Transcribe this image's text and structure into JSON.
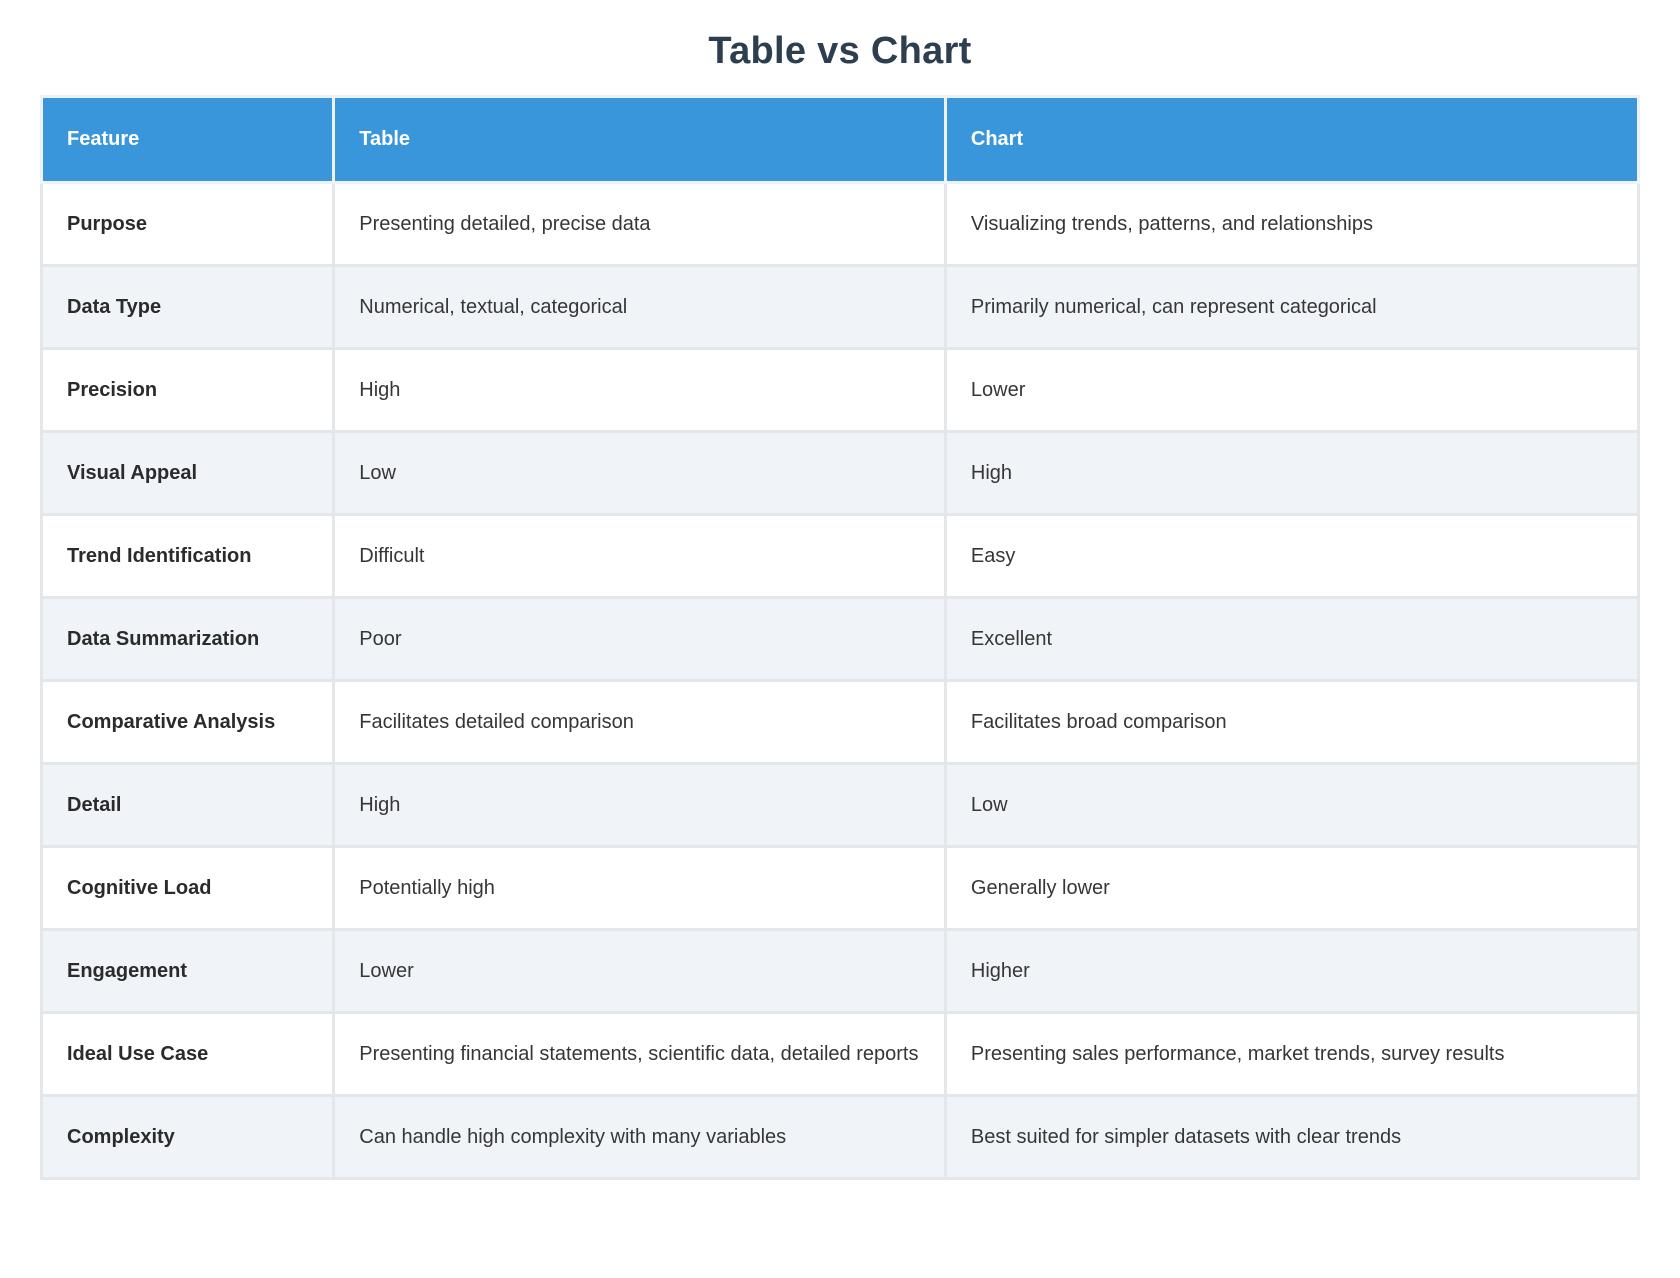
{
  "page": {
    "title": "Table vs Chart"
  },
  "colors": {
    "header_bg": "#3a96db",
    "header_text": "#ffffff",
    "row_bg": "#ffffff",
    "row_alt_bg": "#f0f4f8",
    "border": "#e4e7ea",
    "title_text": "#2c3e50",
    "body_text": "#363636"
  },
  "table": {
    "columns": [
      {
        "label": "Feature"
      },
      {
        "label": "Table"
      },
      {
        "label": "Chart"
      }
    ],
    "rows": [
      {
        "cells": [
          "Purpose",
          "Presenting detailed, precise data",
          "Visualizing trends, patterns, and relationships"
        ]
      },
      {
        "cells": [
          "Data Type",
          "Numerical, textual, categorical",
          "Primarily numerical, can represent categorical"
        ]
      },
      {
        "cells": [
          "Precision",
          "High",
          "Lower"
        ]
      },
      {
        "cells": [
          "Visual Appeal",
          "Low",
          "High"
        ]
      },
      {
        "cells": [
          "Trend Identification",
          "Difficult",
          "Easy"
        ]
      },
      {
        "cells": [
          "Data Summarization",
          "Poor",
          "Excellent"
        ]
      },
      {
        "cells": [
          "Comparative Analysis",
          "Facilitates detailed comparison",
          "Facilitates broad comparison"
        ]
      },
      {
        "cells": [
          "Detail",
          "High",
          "Low"
        ]
      },
      {
        "cells": [
          "Cognitive Load",
          "Potentially high",
          "Generally lower"
        ]
      },
      {
        "cells": [
          "Engagement",
          "Lower",
          "Higher"
        ]
      },
      {
        "cells": [
          "Ideal Use Case",
          "Presenting financial statements, scientific data, detailed reports",
          "Presenting sales performance, market trends, survey results"
        ]
      },
      {
        "cells": [
          "Complexity",
          "Can handle high complexity with many variables",
          "Best suited for simpler datasets with clear trends"
        ]
      }
    ]
  }
}
